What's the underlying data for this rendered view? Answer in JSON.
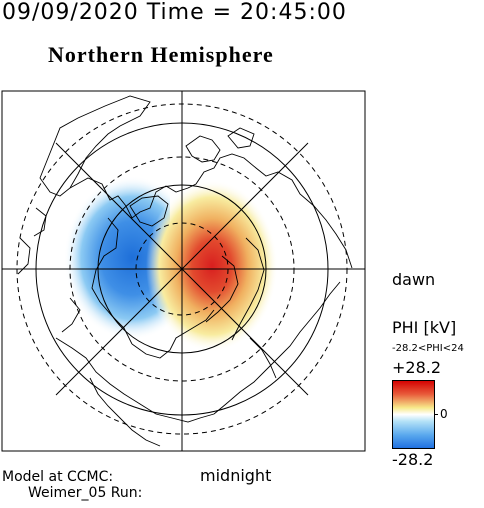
{
  "header": {
    "timestamp": "09/09/2020 Time = 20:45:00",
    "hemisphere": "Northern Hemisphere"
  },
  "map": {
    "projection": "polar stereographic, north pole centered",
    "local_time_labels": {
      "right": "dawn",
      "bottom": "midnight"
    },
    "potential_cells": [
      {
        "name": "negative-cell",
        "sign": "negative",
        "color": "#1e6fd9",
        "side": "left (dusk)"
      },
      {
        "name": "positive-cell",
        "sign": "positive",
        "color": "#d81f1f",
        "side": "right (dawn)"
      }
    ]
  },
  "colorbar": {
    "title": "PHI [kV]",
    "range_text": "-28.2<PHI<24",
    "max_label": "+28.2",
    "zero_label": "0",
    "min_label": "-28.2",
    "colors": {
      "high": "#d40000",
      "mid_high": "#f7e98a",
      "mid": "#ffffff",
      "mid_low": "#7fc8f5",
      "low": "#1f6fe0"
    }
  },
  "credit": {
    "line1": "Model at CCMC:",
    "line2": "Weimer_05 Run:"
  }
}
